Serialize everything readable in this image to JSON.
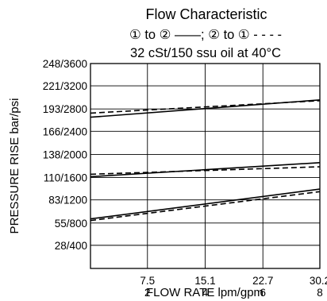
{
  "chart_data": {
    "type": "line",
    "title": "Flow Characteristic",
    "subtitle_line1": "① to ② ——; ② to ① - - - -",
    "subtitle_line2": "32 cSt/150 ssu oil at 40°C",
    "xlabel": "FLOW RATE lpm/gpm",
    "ylabel": "PRESSURE RISE bar/psi",
    "x_range": [
      0,
      30.2
    ],
    "y_range": [
      0,
      248
    ],
    "x_ticks": [
      {
        "value": 7.5,
        "lpm": "7.5",
        "gpm": "2"
      },
      {
        "value": 15.1,
        "lpm": "15.1",
        "gpm": "4"
      },
      {
        "value": 22.7,
        "lpm": "22.7",
        "gpm": "6"
      },
      {
        "value": 30.2,
        "lpm": "30.2",
        "gpm": "8"
      }
    ],
    "y_ticks": [
      {
        "value": 28,
        "label": "28/400"
      },
      {
        "value": 55,
        "label": "55/800"
      },
      {
        "value": 83,
        "label": "83/1200"
      },
      {
        "value": 110,
        "label": "110/1600"
      },
      {
        "value": 138,
        "label": "138/2000"
      },
      {
        "value": 166,
        "label": "166/2400"
      },
      {
        "value": 193,
        "label": "193/2800"
      },
      {
        "value": 221,
        "label": "221/3200"
      },
      {
        "value": 248,
        "label": "248/3600"
      }
    ],
    "grid": true,
    "series": [
      {
        "direction": "1 to 2",
        "style": "solid",
        "x": [
          0,
          30.2
        ],
        "y": [
          183,
          204
        ]
      },
      {
        "direction": "2 to 1",
        "style": "dashed",
        "x": [
          0,
          30.2
        ],
        "y": [
          188,
          203
        ]
      },
      {
        "direction": "1 to 2",
        "style": "solid",
        "x": [
          0,
          30.2
        ],
        "y": [
          111,
          128
        ]
      },
      {
        "direction": "2 to 1",
        "style": "dashed",
        "x": [
          0,
          30.2
        ],
        "y": [
          114,
          123
        ]
      },
      {
        "direction": "1 to 2",
        "style": "solid",
        "x": [
          0,
          30.2
        ],
        "y": [
          60,
          96
        ]
      },
      {
        "direction": "2 to 1",
        "style": "dashed",
        "x": [
          0,
          30.2
        ],
        "y": [
          58,
          93
        ]
      }
    ]
  }
}
